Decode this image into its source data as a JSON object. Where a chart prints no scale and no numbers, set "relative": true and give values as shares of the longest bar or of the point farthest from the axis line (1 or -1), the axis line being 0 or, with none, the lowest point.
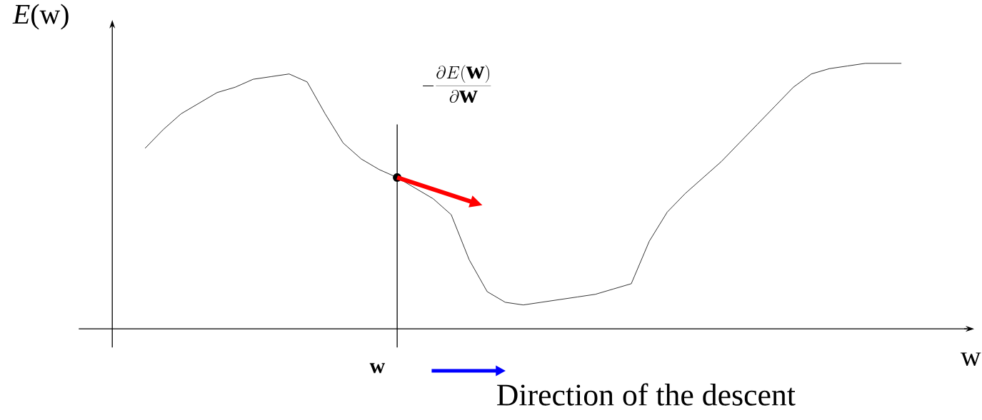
{
  "chart_data": {
    "type": "line",
    "relative": true,
    "xlabel": "w",
    "ylabel": "*E*(w)",
    "marker": "none",
    "categories": [
      null,
      null,
      null,
      null,
      null,
      null,
      null,
      null,
      null,
      null,
      null,
      null,
      null,
      null,
      null,
      null,
      null,
      null,
      null,
      null,
      null,
      null,
      null,
      null,
      null,
      null,
      null,
      null,
      null,
      null,
      null,
      null,
      null,
      null,
      null,
      null,
      null,
      null,
      null,
      null,
      null,
      null,
      null
    ],
    "series": [
      {
        "color": "#000000",
        "values": [
          0.68,
          0.75,
          0.81,
          0.85,
          0.89,
          0.91,
          0.94,
          0.95,
          0.96,
          0.93,
          0.81,
          0.7,
          0.64,
          0.6,
          0.57,
          0.53,
          0.49,
          0.43,
          0.26,
          0.14,
          0.1,
          0.09,
          0.1,
          0.11,
          0.12,
          0.13,
          0.15,
          0.17,
          0.33,
          0.44,
          0.51,
          0.57,
          0.63,
          0.7,
          0.77,
          0.84,
          0.91,
          0.96,
          0.98,
          0.99,
          1.0,
          1.0,
          1.0
        ]
      }
    ],
    "annotations": [
      "w",
      "-\\frac{\\partial E(\\mathbf{w})}{\\partial \\mathbf{w}}",
      "Direction of the descent"
    ]
  }
}
